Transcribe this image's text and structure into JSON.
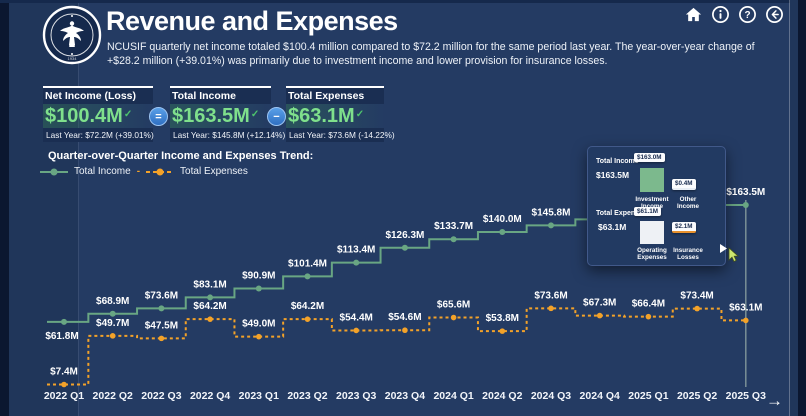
{
  "header": {
    "title": "Revenue and Expenses",
    "subtitle": "NCUSIF quarterly net income totaled $100.4 million compared to $72.2 million for the same period last year. The year-over-year change of +$28.2 million (+39.01%) was primarily due to investment income and lower provision for insurance losses.",
    "logo": "ncua-seal",
    "toolbar_icons": [
      "home-icon",
      "info-icon",
      "help-icon",
      "back-icon"
    ]
  },
  "kpis": {
    "cards": [
      {
        "label": "Net Income (Loss)",
        "value": "$100.4M",
        "check": "✓",
        "last_year": "Last Year: $72.2M (+39.01%)"
      },
      {
        "label": "Total Income",
        "value": "$163.5M",
        "check": "✓",
        "last_year": "Last Year: $145.8M (+12.14%)"
      },
      {
        "label": "Total Expenses",
        "value": "$63.1M",
        "check": "✓",
        "last_year": "Last Year: $73.6M (-14.22%)"
      }
    ],
    "operators": [
      "=",
      "−"
    ]
  },
  "chart_section": {
    "title": "Quarter-over-Quarter Income and Expenses Trend:",
    "legend": [
      {
        "label": "Total Income",
        "color": "#69a683",
        "style": "solid"
      },
      {
        "label": "Total Expenses",
        "color": "#f3a229",
        "style": "dashed"
      }
    ]
  },
  "chart_data": {
    "type": "line",
    "subtype": "step",
    "title": "Quarter-over-Quarter Income and Expenses Trend:",
    "categories": [
      "2022 Q1",
      "2022 Q2",
      "2022 Q3",
      "2022 Q4",
      "2023 Q1",
      "2023 Q2",
      "2023 Q3",
      "2023 Q4",
      "2024 Q1",
      "2024 Q2",
      "2024 Q3",
      "2024 Q4",
      "2025 Q1",
      "2025 Q2",
      "2025 Q3"
    ],
    "series": [
      {
        "name": "Total Income",
        "color": "#69a683",
        "style": "solid",
        "values": [
          61.8,
          68.9,
          73.6,
          83.1,
          90.9,
          101.4,
          113.4,
          126.3,
          133.7,
          140.0,
          145.8,
          151.0,
          156.5,
          160.5,
          163.5
        ],
        "labels": [
          "$61.8M",
          "$68.9M",
          "$73.6M",
          "$83.1M",
          "$90.9M",
          "$101.4M",
          "$113.4M",
          "$126.3M",
          "$133.7M",
          "$140.0M",
          "$145.8M",
          null,
          null,
          null,
          "$163.5M"
        ],
        "hidden_label_indices": [
          11,
          12,
          13
        ],
        "estimated_value_indices": [
          11,
          12,
          13
        ]
      },
      {
        "name": "Total Expenses",
        "color": "#f3a229",
        "style": "dashed",
        "values": [
          7.4,
          49.7,
          47.5,
          64.2,
          49.0,
          64.2,
          54.4,
          54.6,
          65.6,
          53.8,
          73.6,
          67.3,
          66.4,
          73.4,
          63.1
        ],
        "labels": [
          "$7.4M",
          "$49.7M",
          "$47.5M",
          "$64.2M",
          "$49.0M",
          "$64.2M",
          "$54.4M",
          "$54.6M",
          "$65.6M",
          "$53.8M",
          "$73.6M",
          "$67.3M",
          "$66.4M",
          "$73.4M",
          "$63.1M"
        ],
        "hidden_label_indices": [],
        "estimated_value_indices": []
      }
    ],
    "ylim": [
      0,
      185
    ],
    "grid": false,
    "legend_position": "top-left",
    "selected_category": "2025 Q3"
  },
  "tooltip": {
    "income_label": "Total Income",
    "income_value": "$163.5M",
    "expense_label": "Total Expense",
    "expense_value": "$63.1M",
    "items": [
      {
        "label": "Investment Income",
        "value": "$163.0M"
      },
      {
        "label": "Other Income",
        "value": "$0.4M"
      },
      {
        "label": "Operating Expenses",
        "value": "$61.1M"
      },
      {
        "label": "Insurance Losses",
        "value": "$2.1M"
      }
    ]
  },
  "nav": {
    "next_arrow": "→"
  },
  "colors": {
    "background": "#243b63",
    "panel_dark": "#1a2e52",
    "kpi_value_green": "#7fe08c",
    "income_line": "#69a683",
    "expense_line": "#f3a229",
    "operator_blue": "#3f7fd4",
    "tooltip_bar_green": "#7cb98d",
    "tooltip_bar_white": "#eef1f5"
  }
}
